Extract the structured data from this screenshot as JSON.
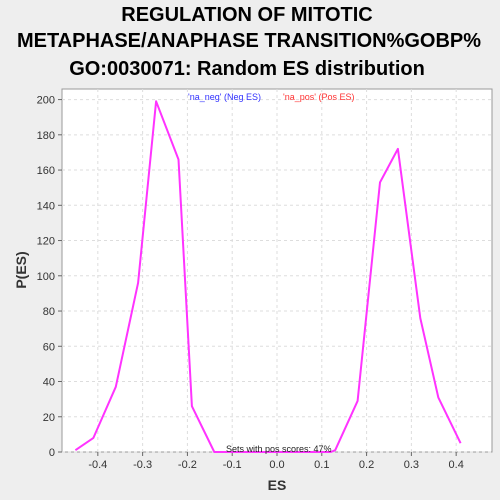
{
  "chart_data": {
    "type": "line",
    "title_lines": [
      "REGULATION OF MITOTIC",
      "METAPHASE/ANAPHASE TRANSITION%GOBP%",
      "GO:0030071: Random ES distribution"
    ],
    "xlabel": "ES",
    "ylabel": "P(ES)",
    "xlim": [
      -0.48,
      0.48
    ],
    "ylim": [
      0,
      206
    ],
    "x_ticks": [
      -0.4,
      -0.3,
      -0.2,
      -0.1,
      0.0,
      0.1,
      0.2,
      0.3,
      0.4
    ],
    "x_tick_labels": [
      "-0.4",
      "-0.3",
      "-0.2",
      "-0.1",
      "0.0",
      "0.1",
      "0.2",
      "0.3",
      "0.4"
    ],
    "y_ticks": [
      0,
      20,
      40,
      60,
      80,
      100,
      120,
      140,
      160,
      180,
      200
    ],
    "y_tick_labels": [
      "0",
      "20",
      "40",
      "60",
      "80",
      "100",
      "120",
      "140",
      "160",
      "180",
      "200"
    ],
    "grid": true,
    "legend": [
      {
        "label": "'na_neg' (Neg ES)",
        "color": "#3333ff"
      },
      {
        "label": "'na_pos' (Pos ES)",
        "color": "#ff3333"
      }
    ],
    "legend_placement": "top-center",
    "annotation": "Sets with pos scores: 47%",
    "series": [
      {
        "color": "#ff33ff",
        "points": [
          [
            -0.45,
            1
          ],
          [
            -0.41,
            8
          ],
          [
            -0.36,
            37
          ],
          [
            -0.31,
            96
          ],
          [
            -0.27,
            199
          ],
          [
            -0.22,
            166
          ],
          [
            -0.19,
            26
          ],
          [
            -0.14,
            0
          ],
          [
            0.12,
            0
          ],
          [
            0.13,
            1
          ],
          [
            0.18,
            29
          ],
          [
            0.23,
            153
          ],
          [
            0.27,
            172
          ],
          [
            0.32,
            76
          ],
          [
            0.36,
            31
          ],
          [
            0.41,
            5
          ]
        ]
      }
    ]
  }
}
